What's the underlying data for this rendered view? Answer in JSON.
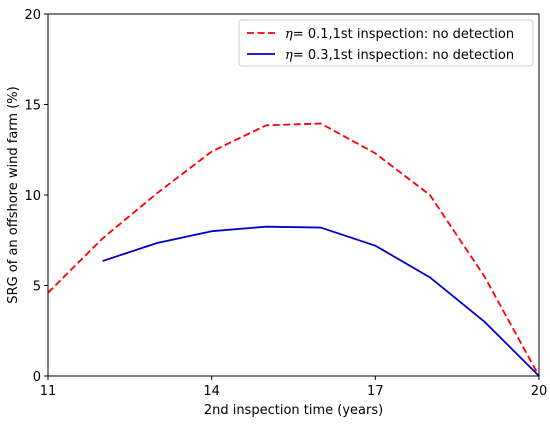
{
  "chart_data": {
    "type": "line",
    "title": "",
    "xlabel": "2nd inspection time (years)",
    "ylabel": "SRG of an offshore wind farm (%)",
    "xlim": [
      11,
      20
    ],
    "ylim": [
      0,
      20
    ],
    "xticks": [
      "11",
      "14",
      "17",
      "20"
    ],
    "yticks": [
      "0",
      "5",
      "10",
      "15",
      "20"
    ],
    "grid": false,
    "legend_position": "top-right",
    "series": [
      {
        "name": "η= 0.1,1st inspection: no detection",
        "name_symbol": "η",
        "name_rest": "= 0.1,1st inspection: no detection",
        "color": "#ff0000",
        "line_style": "dashed",
        "x": [
          11,
          12,
          13,
          14,
          15,
          16,
          17,
          18,
          19,
          20
        ],
        "y": [
          4.6,
          7.6,
          10.1,
          12.4,
          13.85,
          13.95,
          12.3,
          10.0,
          5.5,
          0.0
        ]
      },
      {
        "name": "η= 0.3,1st inspection: no detection",
        "name_symbol": "η",
        "name_rest": "= 0.3,1st inspection: no detection",
        "color": "#0000cc",
        "line_style": "solid",
        "x": [
          12,
          13,
          14,
          15,
          16,
          17,
          18,
          19,
          20
        ],
        "y": [
          6.35,
          7.35,
          8.0,
          8.25,
          8.2,
          7.2,
          5.45,
          3.0,
          0.0
        ]
      }
    ]
  }
}
